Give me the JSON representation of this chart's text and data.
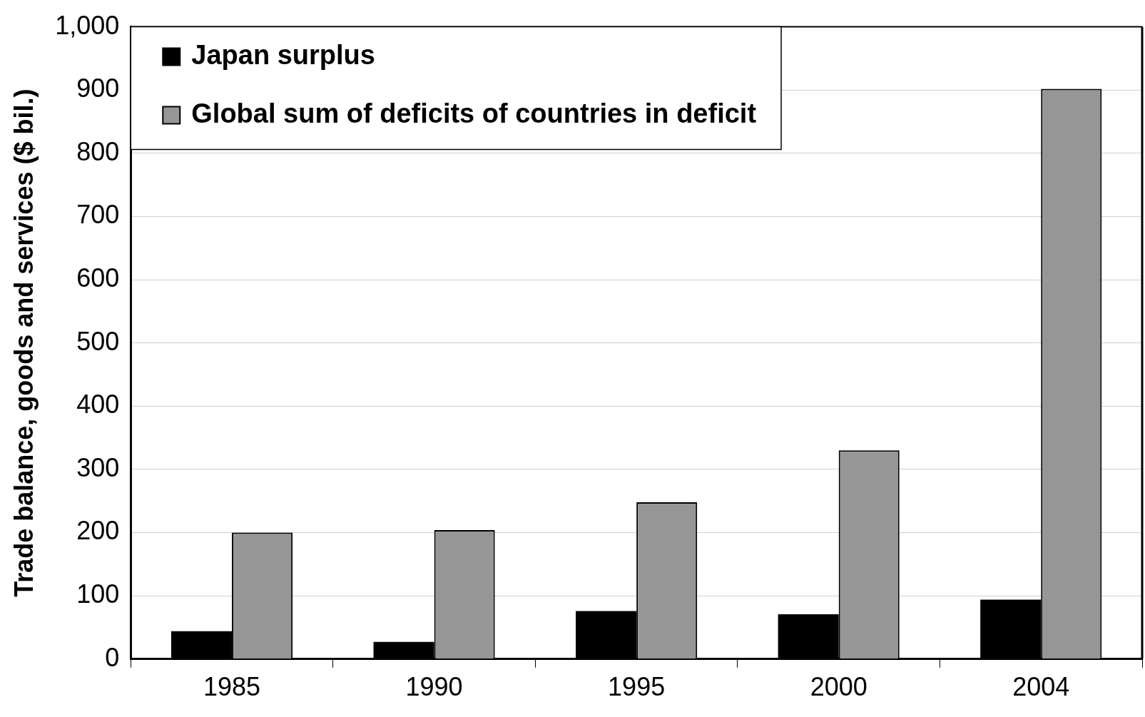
{
  "chart_data": {
    "type": "bar",
    "ylabel": "Trade balance, goods and services ($ bil.)",
    "categories": [
      "1985",
      "1990",
      "1995",
      "2000",
      "2004"
    ],
    "series": [
      {
        "name": "Japan surplus",
        "color": "#000000",
        "values": [
          44,
          27,
          76,
          71,
          94
        ]
      },
      {
        "name": "Global sum of deficits of countries in deficit",
        "color": "#969696",
        "values": [
          200,
          204,
          248,
          330,
          902
        ]
      }
    ],
    "ylim": [
      0,
      1000
    ],
    "yticks": [
      0,
      {
        "value": 100,
        "label": "100"
      },
      {
        "value": 200,
        "label": "200"
      },
      {
        "value": 300,
        "label": "300"
      },
      {
        "value": 400,
        "label": "400"
      },
      {
        "value": 500,
        "label": "500"
      },
      {
        "value": 600,
        "label": "600"
      },
      {
        "value": 700,
        "label": "700"
      },
      {
        "value": 800,
        "label": "800"
      },
      {
        "value": 900,
        "label": "900"
      },
      {
        "value": 1000,
        "label": "1,000"
      }
    ],
    "grid": "y",
    "legend": "top left"
  }
}
